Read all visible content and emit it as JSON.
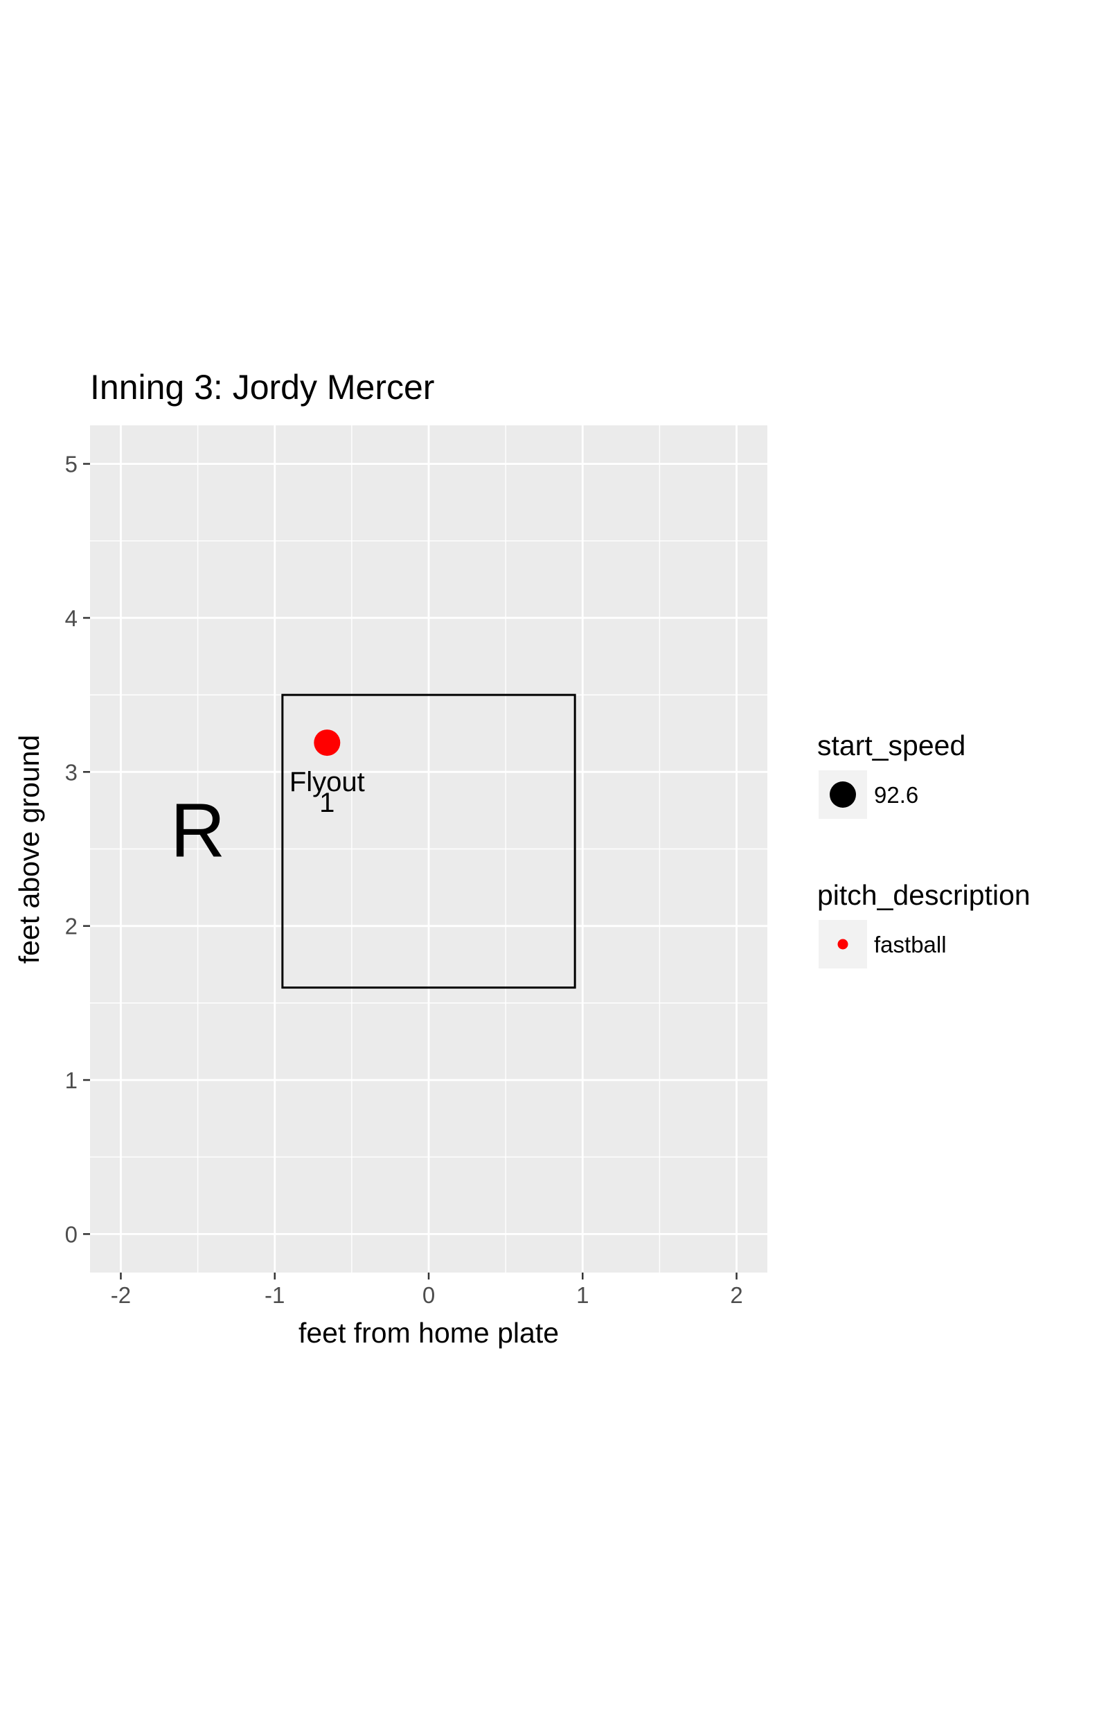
{
  "chart_data": {
    "type": "scatter",
    "title": "Inning 3: Jordy Mercer",
    "xlabel": "feet from home plate",
    "ylabel": "feet above ground",
    "xlim": [
      -2.2,
      2.2
    ],
    "ylim": [
      -0.25,
      5.25
    ],
    "x_ticks": [
      -2,
      -1,
      0,
      1,
      2
    ],
    "x_tick_labels": [
      "-2",
      "-1",
      "0",
      "1",
      "2"
    ],
    "y_ticks": [
      0,
      1,
      2,
      3,
      4,
      5
    ],
    "y_tick_labels": [
      "0",
      "1",
      "2",
      "3",
      "4",
      "5"
    ],
    "grid": true,
    "strike_zone": {
      "x_min": -0.95,
      "x_max": 0.95,
      "y_min": 1.6,
      "y_max": 3.5
    },
    "batter_side": {
      "label": "R",
      "x": -1.5,
      "y": 2.45
    },
    "points": [
      {
        "x": -0.66,
        "y": 3.19,
        "start_speed": 92.6,
        "pitch_description": "fastball",
        "color": "#ff0000",
        "label_event": "Flyout",
        "label_count": "1"
      }
    ],
    "legends": [
      {
        "title": "start_speed",
        "items": [
          {
            "label": "92.6",
            "color": "#000000",
            "marker": "large-dot"
          }
        ]
      },
      {
        "title": "pitch_description",
        "items": [
          {
            "label": "fastball",
            "color": "#ff0000",
            "marker": "small-dot"
          }
        ]
      }
    ],
    "colors": {
      "panel_background": "#ebebeb",
      "grid": "#ffffff",
      "fastball": "#ff0000",
      "strike_zone": "#000000",
      "legend_key_background": "#f2f2f2"
    }
  }
}
